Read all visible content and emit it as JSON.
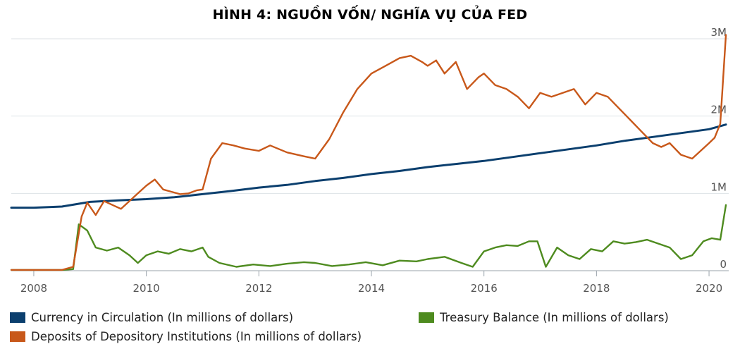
{
  "chart_data": {
    "type": "line",
    "title": "HÌNH 4: NGUỒN VỐN/ NGHĨA VỤ CỦA FED",
    "xlabel": "",
    "ylabel": "",
    "xlim": [
      2007.6,
      2020.35
    ],
    "ylim": [
      0,
      3100000
    ],
    "grid": true,
    "legend_position": "bottom",
    "x_ticks": [
      {
        "value": 2008,
        "label": "2008"
      },
      {
        "value": 2010,
        "label": "2010"
      },
      {
        "value": 2012,
        "label": "2012"
      },
      {
        "value": 2014,
        "label": "2014"
      },
      {
        "value": 2016,
        "label": "2016"
      },
      {
        "value": 2018,
        "label": "2018"
      },
      {
        "value": 2020,
        "label": "2020"
      }
    ],
    "y_ticks": [
      {
        "value": 0,
        "label": "0"
      },
      {
        "value": 1000000,
        "label": "1M"
      },
      {
        "value": 2000000,
        "label": "2M"
      },
      {
        "value": 3000000,
        "label": "3M"
      }
    ],
    "series": [
      {
        "name": "Currency in Circulation (In millions of dollars)",
        "color": "#0b3f6e",
        "x": [
          2007.6,
          2008.0,
          2008.5,
          2009.0,
          2009.5,
          2010.0,
          2010.5,
          2011.0,
          2011.5,
          2012.0,
          2012.5,
          2013.0,
          2013.5,
          2014.0,
          2014.5,
          2015.0,
          2015.5,
          2016.0,
          2016.5,
          2017.0,
          2017.5,
          2018.0,
          2018.5,
          2019.0,
          2019.5,
          2020.0,
          2020.3
        ],
        "values": [
          815000,
          815000,
          830000,
          890000,
          910000,
          925000,
          950000,
          990000,
          1030000,
          1075000,
          1110000,
          1160000,
          1200000,
          1250000,
          1290000,
          1340000,
          1380000,
          1420000,
          1470000,
          1520000,
          1570000,
          1620000,
          1680000,
          1730000,
          1780000,
          1830000,
          1890000
        ]
      },
      {
        "name": "Deposits of Depository Institutions (In millions of dollars)",
        "color": "#c8581a",
        "x": [
          2007.6,
          2008.0,
          2008.5,
          2008.7,
          2008.85,
          2008.95,
          2009.1,
          2009.25,
          2009.4,
          2009.55,
          2009.7,
          2009.85,
          2010.0,
          2010.15,
          2010.3,
          2010.45,
          2010.6,
          2010.75,
          2010.9,
          2011.0,
          2011.15,
          2011.35,
          2011.55,
          2011.75,
          2012.0,
          2012.2,
          2012.5,
          2012.8,
          2013.0,
          2013.25,
          2013.5,
          2013.75,
          2014.0,
          2014.25,
          2014.5,
          2014.7,
          2014.9,
          2015.0,
          2015.15,
          2015.3,
          2015.5,
          2015.7,
          2015.9,
          2016.0,
          2016.2,
          2016.4,
          2016.6,
          2016.8,
          2017.0,
          2017.2,
          2017.4,
          2017.6,
          2017.8,
          2018.0,
          2018.2,
          2018.4,
          2018.6,
          2018.8,
          2019.0,
          2019.15,
          2019.3,
          2019.5,
          2019.7,
          2019.85,
          2020.0,
          2020.1,
          2020.2,
          2020.3
        ],
        "values": [
          10000,
          10000,
          10000,
          50000,
          700000,
          880000,
          720000,
          900000,
          850000,
          800000,
          900000,
          1000000,
          1100000,
          1180000,
          1050000,
          1020000,
          990000,
          1000000,
          1040000,
          1050000,
          1450000,
          1650000,
          1620000,
          1580000,
          1550000,
          1620000,
          1530000,
          1480000,
          1450000,
          1700000,
          2050000,
          2350000,
          2550000,
          2650000,
          2750000,
          2780000,
          2700000,
          2650000,
          2720000,
          2550000,
          2700000,
          2350000,
          2500000,
          2550000,
          2400000,
          2350000,
          2250000,
          2100000,
          2300000,
          2250000,
          2300000,
          2350000,
          2150000,
          2300000,
          2250000,
          2100000,
          1950000,
          1800000,
          1650000,
          1600000,
          1650000,
          1500000,
          1450000,
          1550000,
          1650000,
          1720000,
          1900000,
          3050000
        ]
      },
      {
        "name": "Treasury Balance (In millions of dollars)",
        "color": "#4e8b1f",
        "x": [
          2007.6,
          2008.0,
          2008.5,
          2008.7,
          2008.8,
          2008.95,
          2009.1,
          2009.3,
          2009.5,
          2009.7,
          2009.85,
          2010.0,
          2010.2,
          2010.4,
          2010.6,
          2010.8,
          2011.0,
          2011.1,
          2011.3,
          2011.6,
          2011.9,
          2012.2,
          2012.5,
          2012.8,
          2013.0,
          2013.3,
          2013.6,
          2013.9,
          2014.2,
          2014.5,
          2014.8,
          2015.0,
          2015.3,
          2015.6,
          2015.8,
          2016.0,
          2016.2,
          2016.4,
          2016.6,
          2016.8,
          2016.95,
          2017.1,
          2017.3,
          2017.5,
          2017.7,
          2017.9,
          2018.1,
          2018.3,
          2018.5,
          2018.7,
          2018.9,
          2019.1,
          2019.3,
          2019.5,
          2019.7,
          2019.9,
          2020.05,
          2020.2,
          2020.3
        ],
        "values": [
          10000,
          10000,
          10000,
          20000,
          600000,
          520000,
          300000,
          260000,
          300000,
          200000,
          100000,
          200000,
          250000,
          220000,
          280000,
          250000,
          300000,
          180000,
          100000,
          50000,
          80000,
          60000,
          90000,
          110000,
          100000,
          60000,
          80000,
          110000,
          70000,
          130000,
          120000,
          150000,
          180000,
          100000,
          50000,
          250000,
          300000,
          330000,
          320000,
          380000,
          380000,
          50000,
          300000,
          200000,
          150000,
          280000,
          250000,
          380000,
          350000,
          370000,
          400000,
          350000,
          300000,
          150000,
          200000,
          380000,
          420000,
          400000,
          850000
        ]
      }
    ]
  }
}
